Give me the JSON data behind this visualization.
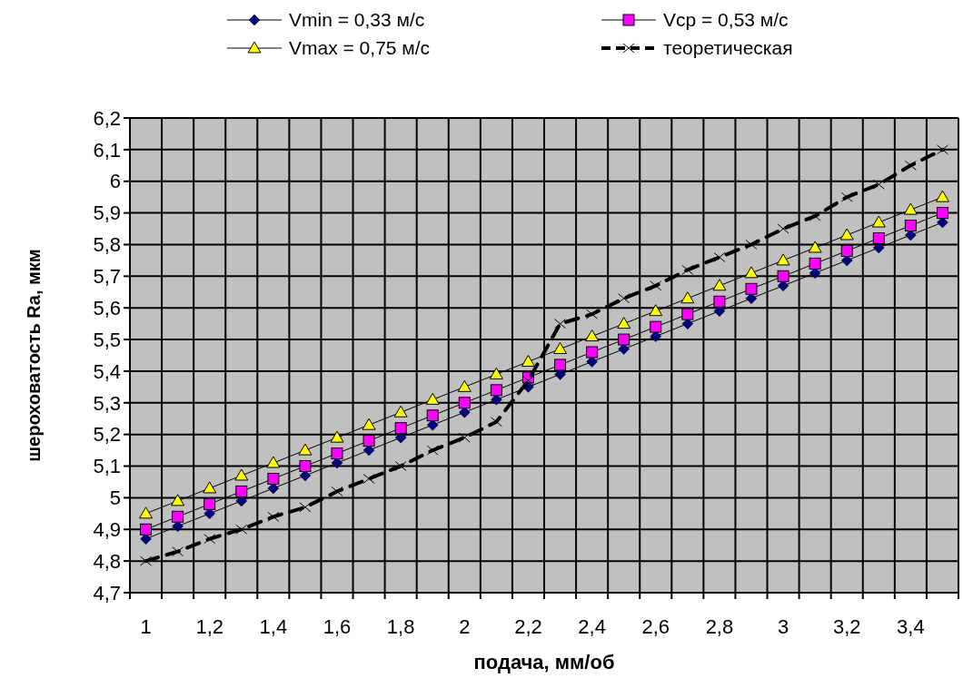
{
  "chart_data": {
    "type": "line",
    "xlabel": "подача, мм/об",
    "ylabel": "шероховатость Ra, мкм",
    "categories": [
      "1",
      null,
      "1,2",
      null,
      "1,4",
      null,
      "1,6",
      null,
      "1,8",
      null,
      "2",
      null,
      "2,2",
      null,
      "2,4",
      null,
      "2,6",
      null,
      "2,8",
      null,
      "3",
      null,
      "3,2",
      null,
      "3,4",
      null
    ],
    "ylim": [
      4.7,
      6.2
    ],
    "yticks": [
      {
        "value": 4.7,
        "label": "4,7"
      },
      {
        "value": 4.8,
        "label": "4,8"
      },
      {
        "value": 4.9,
        "label": "4,9"
      },
      5,
      {
        "value": 5.1,
        "label": "5,1"
      },
      {
        "value": 5.2,
        "label": "5,2"
      },
      {
        "value": 5.3,
        "label": "5,3"
      },
      {
        "value": 5.4,
        "label": "5,4"
      },
      {
        "value": 5.5,
        "label": "5,5"
      },
      {
        "value": 5.6,
        "label": "5,6"
      },
      {
        "value": 5.7,
        "label": "5,7"
      },
      {
        "value": 5.8,
        "label": "5,8"
      },
      {
        "value": 5.9,
        "label": "5,9"
      },
      6,
      {
        "value": 6.1,
        "label": "6,1"
      },
      {
        "value": 6.2,
        "label": "6,2"
      }
    ],
    "grid": true,
    "legend": "top",
    "series": [
      {
        "name": "Vmin = 0,33 м/с",
        "color": "#000080",
        "marker": "diamond",
        "line_style": "solid",
        "values": [
          4.87,
          4.91,
          4.95,
          4.99,
          5.03,
          5.07,
          5.11,
          5.15,
          5.19,
          5.23,
          5.27,
          5.31,
          5.35,
          5.39,
          5.43,
          5.47,
          5.51,
          5.55,
          5.59,
          5.63,
          5.67,
          5.71,
          5.75,
          5.79,
          5.83,
          5.87
        ]
      },
      {
        "name": "Vср = 0,53 м/с",
        "color": "#ff00ff",
        "marker": "square",
        "line_style": "solid",
        "values": [
          4.9,
          4.94,
          4.98,
          5.02,
          5.06,
          5.1,
          5.14,
          5.18,
          5.22,
          5.26,
          5.3,
          5.34,
          5.38,
          5.42,
          5.46,
          5.5,
          5.54,
          5.58,
          5.62,
          5.66,
          5.7,
          5.74,
          5.78,
          5.82,
          5.86,
          5.9
        ]
      },
      {
        "name": "Vmax = 0,75 м/с",
        "color": "#ffff00",
        "marker": "triangle",
        "line_style": "solid",
        "values": [
          4.95,
          4.99,
          5.03,
          5.07,
          5.11,
          5.15,
          5.19,
          5.23,
          5.27,
          5.31,
          5.35,
          5.39,
          5.43,
          5.47,
          5.51,
          5.55,
          5.59,
          5.63,
          5.67,
          5.71,
          5.75,
          5.79,
          5.83,
          5.87,
          5.91,
          5.95
        ]
      },
      {
        "name": "теоретическая",
        "color": "#000000",
        "marker": "cross",
        "line_style": "dashed",
        "values": [
          4.8,
          4.83,
          4.87,
          4.9,
          4.94,
          4.97,
          5.02,
          5.06,
          5.1,
          5.15,
          5.19,
          5.24,
          5.37,
          5.55,
          5.58,
          5.63,
          5.67,
          5.72,
          5.76,
          5.8,
          5.85,
          5.89,
          5.95,
          5.99,
          6.05,
          6.1
        ]
      }
    ]
  }
}
